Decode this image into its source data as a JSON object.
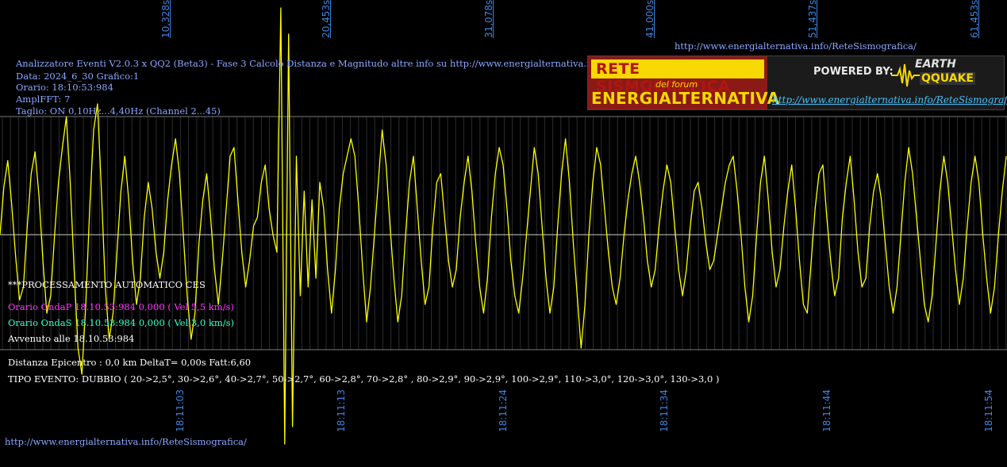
{
  "header_info": {
    "line1": "Analizzatore Eventi V2.0.3 x QQ2 (Beta3) - Fase 3 Calcolo Distanza e Magnitudo altre info su http://www.energialternativa.info/ReteSism",
    "line2": "Data: 2024_6_30 Grafico:1",
    "line3": "Orario: 18:10:53:984",
    "line4": "AmplFFT: 7",
    "line5": "Taglio: ON 0,10Hz...4,40Hz       (Channel 2...45)"
  },
  "top_url": "http://www.energialternativa.info/ReteSismografica/",
  "bottom_url": "http://www.energialternativa.info/ReteSismografica/",
  "time_top_labels": [
    "10,328s",
    "20,453s",
    "31,078s",
    "41,000s",
    "51,437s",
    "61,453s"
  ],
  "time_bottom_labels": [
    "18:11:03",
    "18:11:13",
    "18:11:24",
    "18:11:34",
    "18:11:44",
    "18:11:54"
  ],
  "processing": {
    "title": "***PROCESSAMENTO AUTOMATICO CES",
    "onda_p": "Orario OndaP 18.10.53:984  0,000 ( Vel 5,5 km/s)",
    "onda_s": "Orario OndaS 18.10.53:984  0,000 ( Vel 3,0 km/s)",
    "avvenuto": "Avvenuto alle 18.10.53:984",
    "distanza": "Distanza Epicentro : 0,0 km DeltaT= 0,00s  Fatt:6,60",
    "tipo_evento": "TIPO EVENTO: DUBBIO ( 20->2,5°, 30->2,6°, 40->2,7°, 50->2,7°, 60->2,8°, 70->2,8° , 80->2,9°, 90->2,9°, 100->2,9°, 110->3,0°, 120->3,0°, 130->3,0 )"
  },
  "logo": {
    "title1": "RETE SISMOGRAFICA",
    "forum": "del forum",
    "title2": "ENERGIALTERNATIVA",
    "powered": "POWERED BY:",
    "eq_line1": "EARTH",
    "eq_line2": "QQUAKE",
    "url": "http://www.energialternativa.info/ReteSismografica"
  },
  "colors": {
    "background": "#000000",
    "waveform": "#ffff00",
    "grid": "#5a5a5a",
    "info_text": "#8aa7ff",
    "onda_p": "#ff33ff",
    "onda_s": "#33ffcc",
    "time_labels": "#3f82e0"
  },
  "chart_data": {
    "type": "line",
    "title": "",
    "xlabel": "",
    "ylabel": "",
    "x_tick_labels_top": [
      "10,328s",
      "20,453s",
      "31,078s",
      "41,000s",
      "51,437s",
      "61,453s"
    ],
    "x_tick_labels_bottom": [
      "18:11:03",
      "18:11:13",
      "18:11:24",
      "18:11:34",
      "18:11:44",
      "18:11:54"
    ],
    "series": [
      {
        "values": [
          0.0,
          0.55,
          0.85,
          0.35,
          -0.25,
          -0.75,
          -0.6,
          0.1,
          0.7,
          0.95,
          0.45,
          -0.3,
          -0.9,
          -0.7,
          0.0,
          0.6,
          1.0,
          1.35,
          0.6,
          -0.4,
          -1.3,
          -1.6,
          -0.8,
          0.3,
          1.2,
          1.5,
          0.5,
          -0.6,
          -1.2,
          -0.9,
          -0.2,
          0.5,
          0.9,
          0.4,
          -0.3,
          -0.8,
          -0.5,
          0.2,
          0.6,
          0.3,
          -0.2,
          -0.5,
          -0.2,
          0.4,
          0.8,
          1.1,
          0.7,
          0.0,
          -0.7,
          -1.2,
          -0.9,
          -0.1,
          0.4,
          0.7,
          0.2,
          -0.4,
          -0.8,
          -0.3,
          0.3,
          0.9,
          1.0,
          0.4,
          -0.2,
          -0.6,
          -0.3,
          0.1,
          0.2,
          0.6,
          0.8,
          0.3,
          0.0,
          -0.2,
          2.6,
          -2.4,
          2.3,
          -2.2,
          0.9,
          -0.7,
          0.5,
          -0.6,
          0.4,
          -0.5,
          0.6,
          0.3,
          -0.4,
          -0.9,
          -0.4,
          0.3,
          0.7,
          0.9,
          1.1,
          0.9,
          0.3,
          -0.4,
          -1.0,
          -0.6,
          0.0,
          0.6,
          1.2,
          0.8,
          0.1,
          -0.5,
          -1.0,
          -0.7,
          0.0,
          0.6,
          0.9,
          0.3,
          -0.3,
          -0.8,
          -0.6,
          0.1,
          0.6,
          0.7,
          0.2,
          -0.3,
          -0.6,
          -0.4,
          0.2,
          0.6,
          0.9,
          0.5,
          -0.1,
          -0.6,
          -0.9,
          -0.5,
          0.2,
          0.7,
          1.0,
          0.8,
          0.3,
          -0.3,
          -0.7,
          -0.9,
          -0.5,
          0.0,
          0.5,
          1.0,
          0.7,
          0.1,
          -0.5,
          -0.9,
          -0.6,
          0.1,
          0.7,
          1.1,
          0.6,
          -0.1,
          -0.7,
          -1.3,
          -0.8,
          0.0,
          0.6,
          1.0,
          0.8,
          0.3,
          -0.2,
          -0.6,
          -0.8,
          -0.5,
          0.0,
          0.4,
          0.7,
          0.9,
          0.6,
          0.2,
          -0.3,
          -0.6,
          -0.4,
          0.1,
          0.5,
          0.8,
          0.6,
          0.1,
          -0.4,
          -0.7,
          -0.4,
          0.1,
          0.5,
          0.6,
          0.3,
          -0.1,
          -0.4,
          -0.3,
          0.0,
          0.3,
          0.6,
          0.8,
          0.9,
          0.5,
          0.0,
          -0.6,
          -1.0,
          -0.7,
          0.0,
          0.6,
          0.9,
          0.4,
          -0.2,
          -0.6,
          -0.4,
          0.1,
          0.5,
          0.8,
          0.3,
          -0.3,
          -0.8,
          -0.9,
          -0.3,
          0.3,
          0.7,
          0.8,
          0.2,
          -0.3,
          -0.7,
          -0.5,
          0.2,
          0.6,
          0.9,
          0.4,
          -0.2,
          -0.6,
          -0.5,
          0.1,
          0.5,
          0.7,
          0.4,
          -0.1,
          -0.6,
          -0.9,
          -0.6,
          0.0,
          0.6,
          1.0,
          0.7,
          0.2,
          -0.3,
          -0.8,
          -1.0,
          -0.7,
          -0.1,
          0.5,
          0.9,
          0.6,
          0.1,
          -0.4,
          -0.8,
          -0.5,
          0.1,
          0.6,
          0.9,
          0.6,
          0.0,
          -0.5,
          -0.9,
          -0.6,
          0.0,
          0.5,
          0.9
        ]
      }
    ]
  }
}
